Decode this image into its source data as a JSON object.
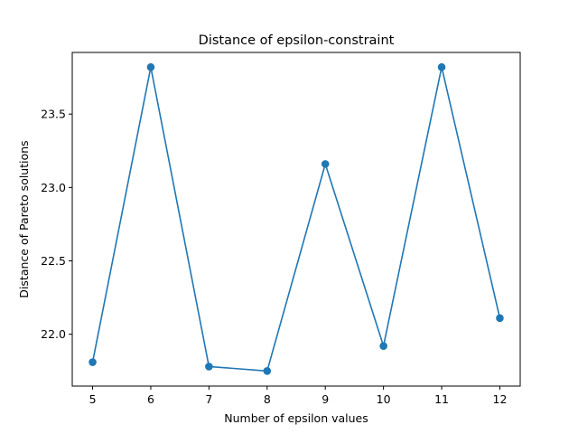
{
  "chart_data": {
    "type": "line",
    "title": "Distance of epsilon-constraint",
    "xlabel": "Number of epsilon values",
    "ylabel": "Distance of Pareto solutions",
    "x": [
      5,
      6,
      7,
      8,
      9,
      10,
      11,
      12
    ],
    "y": [
      21.81,
      23.82,
      21.78,
      21.75,
      23.16,
      21.92,
      23.82,
      22.11
    ],
    "xlim": [
      4.65,
      12.35
    ],
    "ylim": [
      21.647,
      23.92
    ],
    "xticks": [
      5,
      6,
      7,
      8,
      9,
      10,
      11,
      12
    ],
    "yticks": [
      22.0,
      22.5,
      23.0,
      23.5
    ],
    "ytick_labels": [
      "22.0",
      "22.5",
      "23.0",
      "23.5"
    ],
    "series_color": "#1f77b4",
    "marker": "circle",
    "grid": false,
    "legend": "none"
  }
}
